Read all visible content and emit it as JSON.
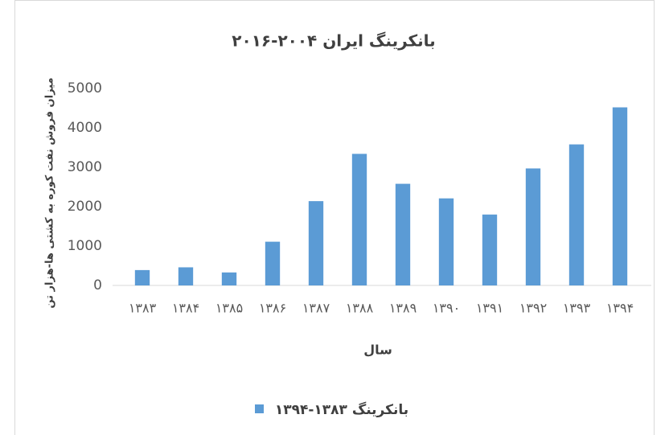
{
  "chart_data": {
    "type": "bar",
    "title": "بانکرینگ ایران ۲۰۰۴-۲۰۱۶",
    "y_label": "میزان فروش نفت کوره به کشتی ها-هزار تن",
    "x_label": "سال",
    "categories": [
      "۱۳۸۳",
      "۱۳۸۴",
      "۱۳۸۵",
      "۱۳۸۶",
      "۱۳۸۷",
      "۱۳۸۸",
      "۱۳۸۹",
      "۱۳۹۰",
      "۱۳۹۱",
      "۱۳۹۲",
      "۱۳۹۳",
      "۱۳۹۴"
    ],
    "series": [
      {
        "name": "بانکرینگ ۱۳۸۳-۱۳۹۴",
        "color": "#5b9bd5",
        "values": [
          390,
          460,
          330,
          1110,
          2140,
          3340,
          2580,
          2210,
          1800,
          2970,
          3580,
          4520
        ]
      }
    ],
    "ylim": [
      0,
      5000
    ],
    "yticks": [
      0,
      1000,
      2000,
      3000,
      4000,
      5000
    ],
    "grid": false,
    "legend": "bottom"
  }
}
